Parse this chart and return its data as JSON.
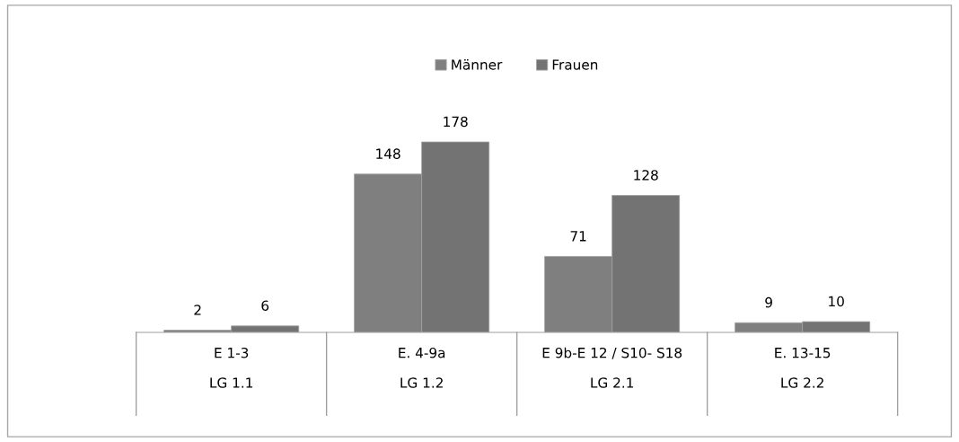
{
  "chart_data": {
    "type": "bar",
    "categories": [
      "E 1-3\nLG 1.1",
      "E. 4-9a\nLG 1.2",
      "E 9b-E 12 / S10- S18\nLG 2.1",
      "E. 13-15\nLG 2.2"
    ],
    "series": [
      {
        "name": "Männer",
        "color": "#7f7f7f",
        "values": [
          2,
          148,
          71,
          9
        ]
      },
      {
        "name": "Frauen",
        "color": "#737373",
        "values": [
          6,
          178,
          128,
          10
        ]
      }
    ],
    "tick_labels": "x",
    "data_labels": true,
    "legend": "top",
    "grid": false
  }
}
